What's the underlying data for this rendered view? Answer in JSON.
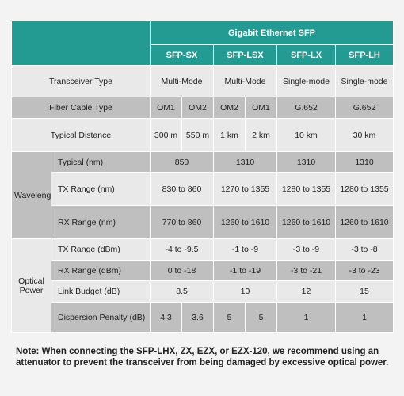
{
  "header": {
    "group": "Gigabit Ethernet SFP",
    "models": [
      "SFP-SX",
      "SFP-LSX",
      "SFP-LX",
      "SFP-LH"
    ]
  },
  "rows": {
    "transceiver_type": {
      "label": "Transceiver Type",
      "sx": "Multi-Mode",
      "lsx": "Multi-Mode",
      "lx": "Single-mode",
      "lh": "Single-mode"
    },
    "fiber_cable_type": {
      "label": "Fiber Cable Type",
      "sx_a": "OM1",
      "sx_b": "OM2",
      "lsx_a": "OM2",
      "lsx_b": "OM1",
      "lx": "G.652",
      "lh": "G.652"
    },
    "typical_distance": {
      "label": "Typical Distance",
      "sx_a": "300 m",
      "sx_b": "550 m",
      "lsx_a": "1 km",
      "lsx_b": "2 km",
      "lx": "10 km",
      "lh": "30 km"
    }
  },
  "wavelength": {
    "group_label": "Wavelength",
    "typical": {
      "label": "Typical (nm)",
      "sx": "850",
      "lsx": "1310",
      "lx": "1310",
      "lh": "1310"
    },
    "tx_range": {
      "label": "TX Range (nm)",
      "sx": "830 to 860",
      "lsx": "1270 to 1355",
      "lx": "1280 to 1355",
      "lh": "1280 to 1355"
    },
    "rx_range": {
      "label": "RX Range (nm)",
      "sx": "770 to 860",
      "lsx": "1260 to 1610",
      "lx": "1260 to 1610",
      "lh": "1260 to 1610"
    }
  },
  "optical_power": {
    "group_label": "Optical Power",
    "tx_range": {
      "label": "TX Range (dBm)",
      "sx": "-4 to -9.5",
      "lsx": "-1 to -9",
      "lx": "-3 to -9",
      "lh": "-3 to -8"
    },
    "rx_range": {
      "label": "RX Range (dBm)",
      "sx": "0 to -18",
      "lsx": "-1 to -19",
      "lx": "-3 to -21",
      "lh": "-3 to -23"
    },
    "link_budget": {
      "label": "Link Budget (dB)",
      "sx": "8.5",
      "lsx": "10",
      "lx": "12",
      "lh": "15"
    },
    "dispersion_penalty": {
      "label": "Dispersion Penalty (dB)",
      "sx_a": "4.3",
      "sx_b": "3.6",
      "lsx_a": "5",
      "lsx_b": "5",
      "lx": "1",
      "lh": "1"
    }
  },
  "note": "Note: When connecting the SFP-LHX, ZX, EZX, or EZX-120, we recommend using an attenuator to prevent the transceiver from being damaged by excessive optical power.",
  "colors": {
    "header_teal": "#239b92",
    "row_light": "#e9e9e9",
    "row_dark": "#bfbfbf",
    "background": "#f3f3f3"
  }
}
